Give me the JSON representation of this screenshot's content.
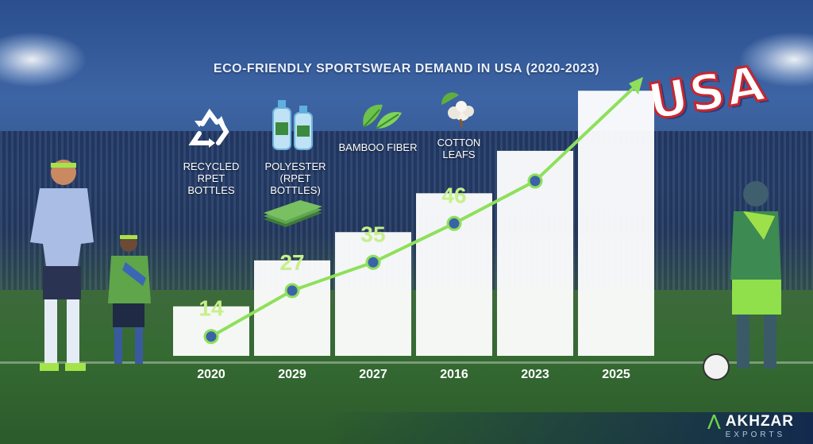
{
  "title": "ECO-FRIENDLY SPORTSWEAR DEMAND IN USA (2020-2023)",
  "materials": [
    {
      "label_1": "RECYCLED",
      "label_2": "RPET BOTTLES",
      "icon": "recycle-icon"
    },
    {
      "label_1": "POLYESTER",
      "label_2": "(RPET BOTTLES)",
      "icon": "bottles-icon"
    },
    {
      "label_1": "BAMBOO FIBER",
      "label_2": "",
      "icon": "bamboo-leaves-icon"
    },
    {
      "label_1": "COTTON",
      "label_2": "LEAFS",
      "icon": "cotton-icon"
    }
  ],
  "overlay_text": "USA",
  "brand": {
    "name": "AKHZAR",
    "sub": "EXPORTS"
  },
  "colors": {
    "line": "#8ee05a",
    "bars": "#ffffff",
    "labels": "#c6f08a"
  },
  "chart_data": {
    "type": "bar",
    "categories": [
      "2020",
      "2029",
      "2027",
      "2016",
      "2023",
      "2025"
    ],
    "values": [
      14,
      27,
      35,
      46,
      58,
      75
    ],
    "data_labels": [
      "14",
      "27",
      "35",
      "46",
      "",
      ""
    ],
    "line_overlay": true,
    "title": "ECO-FRIENDLY SPORTSWEAR DEMAND IN USA (2020-2023)",
    "xlabel": "",
    "ylabel": "",
    "ylim": [
      0,
      80
    ],
    "grid": false,
    "legend": "none"
  }
}
